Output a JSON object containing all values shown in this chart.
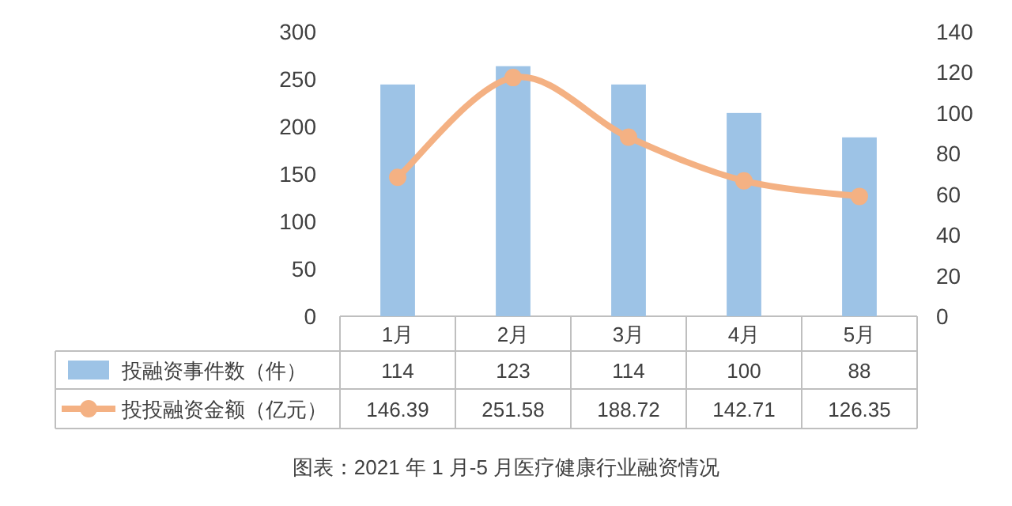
{
  "chart_data": {
    "type": "bar",
    "categories": [
      "1月",
      "2月",
      "3月",
      "4月",
      "5月"
    ],
    "series": [
      {
        "name": "投融资事件数（件）",
        "axis": "y2",
        "color": "#9dc3e6",
        "values": [
          114,
          123,
          114,
          100,
          88
        ]
      },
      {
        "name": "投投融资金额（亿元）",
        "type": "line",
        "color": "#f4b183",
        "values": [
          146.39,
          251.58,
          188.72,
          142.71,
          126.35
        ]
      }
    ],
    "ylim": [
      0,
      300
    ],
    "yticks": [
      0,
      50,
      100,
      150,
      200,
      250,
      300
    ],
    "y2lim": [
      0,
      140
    ],
    "y2ticks": [
      0,
      20,
      40,
      60,
      80,
      100,
      120,
      140
    ],
    "marker": "circle",
    "legend": "bottom",
    "data_labels": true,
    "annotations": [
      "图表：2021 年 1 月-5 月医疗健康行业融资情况"
    ]
  }
}
